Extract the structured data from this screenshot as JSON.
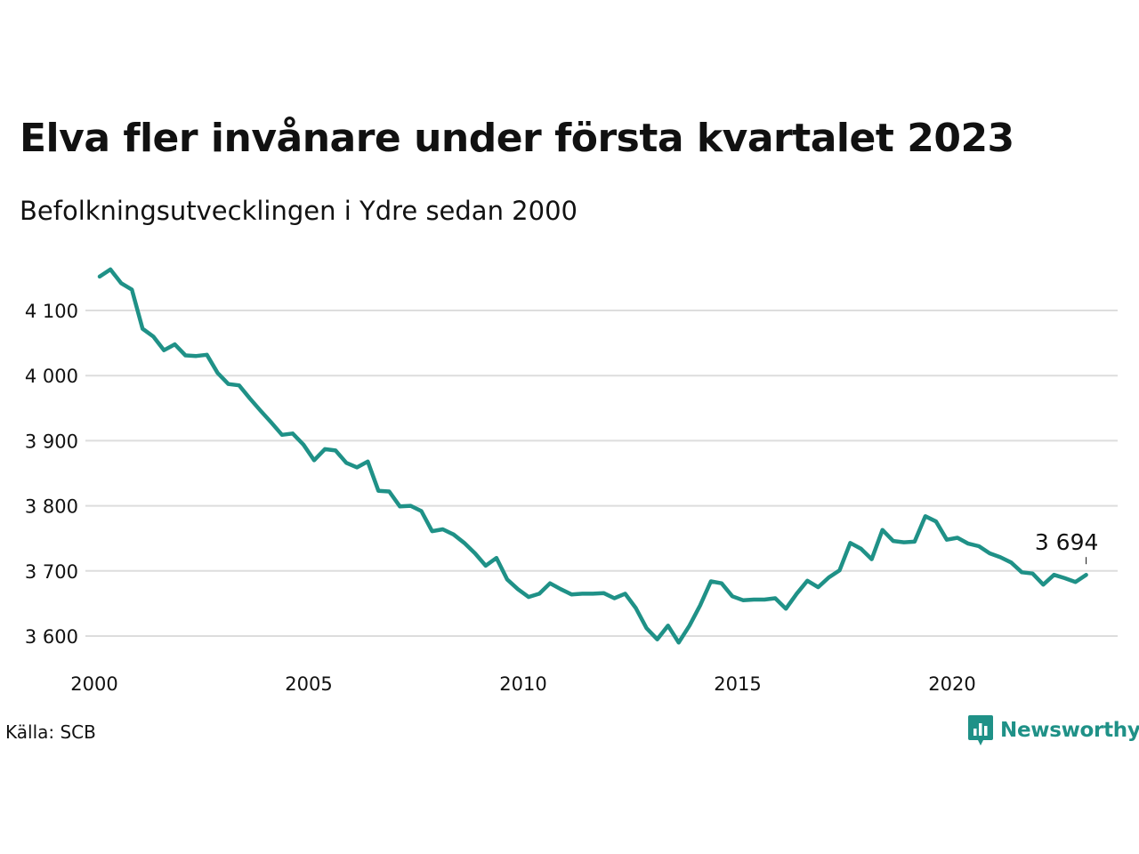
{
  "title": "Elva fler invånare under första kvartalet 2023",
  "subtitle": "Befolkningsutvecklingen i Ydre sedan 2000",
  "source": "Källa: SCB",
  "brand": "Newsworthy",
  "colors": {
    "line": "#1f9187",
    "grid": "#dddddd",
    "text": "#111111"
  },
  "chart_data": {
    "type": "line",
    "x_tick_labels": [
      "2000",
      "2005",
      "2010",
      "2015",
      "2020"
    ],
    "x_ticks": [
      2000,
      2005,
      2010,
      2015,
      2020
    ],
    "y_tick_labels": [
      "3 600",
      "3 700",
      "3 800",
      "3 900",
      "4 000",
      "4 100"
    ],
    "y_ticks": [
      3600,
      3700,
      3800,
      3900,
      4000,
      4100
    ],
    "xlim": [
      2000,
      2024
    ],
    "ylim": [
      3590,
      4175
    ],
    "grid": "horizontal",
    "last_label": "3 694",
    "values": [
      4152,
      4163,
      4142,
      4132,
      4072,
      4060,
      4039,
      4048,
      4031,
      4030,
      4032,
      4004,
      3987,
      3985,
      3965,
      3946,
      3928,
      3909,
      3911,
      3894,
      3870,
      3887,
      3885,
      3866,
      3859,
      3868,
      3823,
      3822,
      3799,
      3800,
      3792,
      3761,
      3764,
      3756,
      3743,
      3727,
      3708,
      3720,
      3687,
      3672,
      3660,
      3665,
      3681,
      3672,
      3664,
      3665,
      3665,
      3666,
      3658,
      3665,
      3643,
      3612,
      3595,
      3616,
      3590,
      3616,
      3647,
      3684,
      3681,
      3661,
      3655,
      3656,
      3656,
      3658,
      3642,
      3665,
      3685,
      3675,
      3690,
      3701,
      3743,
      3734,
      3718,
      3763,
      3746,
      3744,
      3745,
      3784,
      3776,
      3748,
      3751,
      3742,
      3738,
      3727,
      3721,
      3713,
      3698,
      3696,
      3679,
      3694,
      3689,
      3683,
      3694
    ]
  }
}
